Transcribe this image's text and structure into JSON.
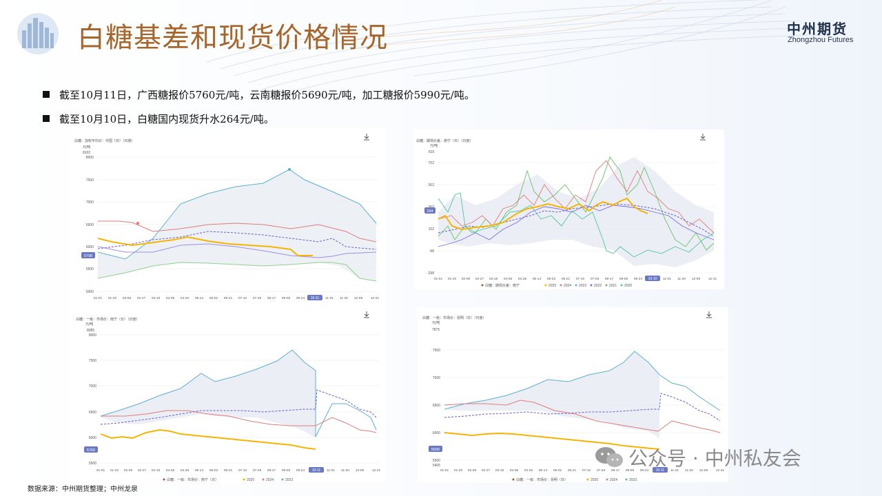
{
  "header": {
    "title": "白糖基差和现货价格情况",
    "brand_cn": "中州期货",
    "brand_en": "Zhongzhou Futures"
  },
  "bullets": [
    "截至10月11日，广西糖报价5760元/吨，云南糖报价5690元/吨，加工糖报价5990元/吨。",
    "截至10月10日，白糖国内现货升水264元/吨。"
  ],
  "source": "数据来源：中州期货整理；中州龙泉",
  "watermark": "公众号 · 中州私友会",
  "x_ticks": [
    "01-01",
    "01-20",
    "02-08",
    "02-27",
    "03-18",
    "04-06",
    "04-25",
    "05-14",
    "06-02",
    "06-21",
    "07-10",
    "07-29",
    "08-17",
    "09-05",
    "09-24",
    "10-11",
    "11-01",
    "11-20",
    "12-09",
    "12-31"
  ],
  "x_ticks_basis": [
    "01-01",
    "01-20",
    "02-08",
    "02-27",
    "03-18",
    "04-06",
    "04-25",
    "05-14",
    "06-02",
    "06-21",
    "07-10",
    "07-29",
    "08-17",
    "09-05",
    "09-24",
    "10-10",
    "11-01",
    "11-20",
    "12-09",
    "12-31"
  ],
  "colors": {
    "y2025": "#f5b400",
    "y2024": "#e07b7b",
    "y2023": "#5bb0d0",
    "avg": "#6a5acd",
    "y2022": "#7b68ee",
    "y2021": "#66c266",
    "y2020": "#4dc4a0"
  },
  "charts": {
    "c1": {
      "title": "白糖：加权平均价：中国（日）（日度）",
      "unit": "元/吨",
      "y_top": "8102",
      "y_ticks": [
        "8000",
        "7500",
        "7000",
        "6500",
        "6000",
        "5500",
        "5000"
      ],
      "current": "5798",
      "current_x": "10-11"
    },
    "c2": {
      "title": "白糖：期现价差：南宁（日）（日度）",
      "unit": "元/吨",
      "y_top": "810",
      "y_ticks": [
        "702",
        "502",
        "302",
        "102",
        "-98",
        "-298"
      ],
      "current": "264",
      "current_x": "10-10",
      "legend_lead": "白糖：期现价差：南宁",
      "legend": [
        "2025",
        "2024",
        "2023",
        "2022",
        "2021",
        "2020"
      ]
    },
    "c3": {
      "title": "白糖：一级：市场价：南宁（日）（日度）",
      "unit": "元/吨",
      "y_top": "8085",
      "y_ticks": [
        "8000",
        "7500",
        "7000",
        "6500",
        "6000",
        "5500"
      ],
      "current": "5760",
      "current_x": "10-11",
      "legend_lead": "白糖：一级：市场价：南宁（日）",
      "legend": [
        "2025",
        "2024",
        "2023"
      ]
    },
    "c4": {
      "title": "白糖：一级：市场价：昆明（日）（日度）",
      "unit": "元/吨",
      "y_top": "7875",
      "y_ticks": [
        "7500",
        "7000",
        "6500",
        "6000",
        "5500"
      ],
      "y_bottom": "5405",
      "current": "5690",
      "current_x": "10-11",
      "legend_lead": "白糖：一级：市场价：昆明（日）",
      "legend": [
        "2025",
        "2024",
        "2023"
      ]
    }
  }
}
